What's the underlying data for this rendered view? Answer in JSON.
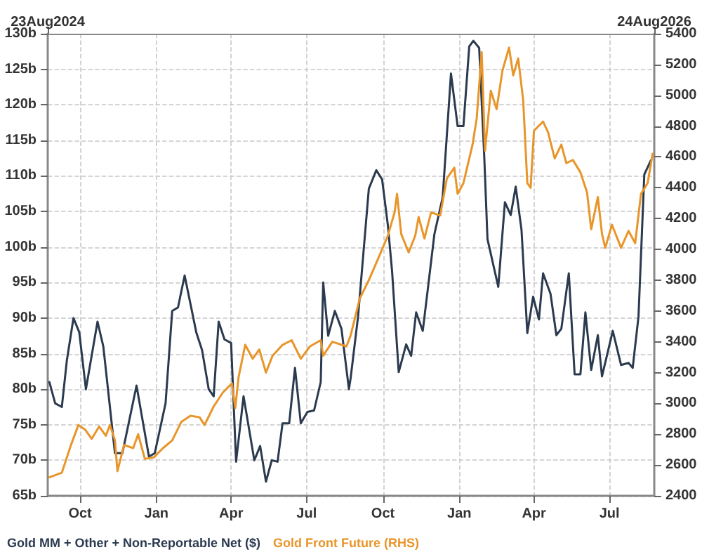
{
  "chart_data": {
    "type": "line",
    "xlim": [
      "2024-08-23",
      "2026-08-24"
    ],
    "xticks": [
      {
        "value": "2024-10-01",
        "label": "Oct"
      },
      {
        "value": "2025-01-01",
        "label": "Jan"
      },
      {
        "value": "2025-04-01",
        "label": "Apr"
      },
      {
        "value": "2025-07-01",
        "label": "Jul"
      },
      {
        "value": "2025-10-01",
        "label": "Oct"
      },
      {
        "value": "2026-01-01",
        "label": "Jan"
      },
      {
        "value": "2026-04-01",
        "label": "Apr"
      },
      {
        "value": "2026-07-01",
        "label": "Jul"
      }
    ],
    "x2lim": [
      "2024-08-23",
      "2026-08-24"
    ],
    "x2ticks": [
      {
        "value": "2024-08-23",
        "label": "23Aug2024"
      },
      {
        "value": "2026-08-24",
        "label": "24Aug2026"
      }
    ],
    "ylim": [
      65,
      130
    ],
    "yticks": [
      {
        "value": 65,
        "label": "65b"
      },
      {
        "value": 70,
        "label": "70b"
      },
      {
        "value": 75,
        "label": "75b"
      },
      {
        "value": 80,
        "label": "80b"
      },
      {
        "value": 85,
        "label": "85b"
      },
      {
        "value": 90,
        "label": "90b"
      },
      {
        "value": 95,
        "label": "95b"
      },
      {
        "value": 100,
        "label": "100b"
      },
      {
        "value": 105,
        "label": "105b"
      },
      {
        "value": 110,
        "label": "110b"
      },
      {
        "value": 115,
        "label": "115b"
      },
      {
        "value": 120,
        "label": "120b"
      },
      {
        "value": 125,
        "label": "125b"
      },
      {
        "value": 130,
        "label": "130b"
      }
    ],
    "y2lim": [
      2400,
      5400
    ],
    "y2ticks": [
      2400,
      2600,
      2800,
      3000,
      3200,
      3400,
      3600,
      3800,
      4000,
      4200,
      4400,
      4600,
      4800,
      5000,
      5200,
      5400
    ],
    "grid": true,
    "legend": "bottom left",
    "marker": "none",
    "line_style": "solid",
    "series": [
      {
        "name": "Gold MM + Other + Non-Reportable Net ($)",
        "color": "#2b3a4f",
        "x": [
          "2024-08-25",
          "2024-09-01",
          "2024-09-09",
          "2024-09-15",
          "2024-09-23",
          "2024-09-30",
          "2024-10-08",
          "2024-10-22",
          "2024-10-29",
          "2024-11-12",
          "2024-11-21",
          "2024-12-08",
          "2024-12-23",
          "2024-12-30",
          "2025-01-12",
          "2025-01-20",
          "2025-01-27",
          "2025-02-04",
          "2025-02-18",
          "2025-02-25",
          "2025-03-05",
          "2025-03-11",
          "2025-03-17",
          "2025-03-24",
          "2025-04-01",
          "2025-04-07",
          "2025-04-16",
          "2025-04-29",
          "2025-05-06",
          "2025-05-13",
          "2025-05-20",
          "2025-05-27",
          "2025-06-02",
          "2025-06-10",
          "2025-06-17",
          "2025-06-24",
          "2025-07-02",
          "2025-07-10",
          "2025-07-18",
          "2025-07-21",
          "2025-07-27",
          "2025-08-04",
          "2025-08-12",
          "2025-08-21",
          "2025-08-23",
          "2025-09-01",
          "2025-09-14",
          "2025-09-23",
          "2025-09-30",
          "2025-10-07",
          "2025-10-12",
          "2025-10-20",
          "2025-10-29",
          "2025-11-04",
          "2025-11-10",
          "2025-11-18",
          "2025-11-24",
          "2025-12-02",
          "2025-12-12",
          "2025-12-22",
          "2025-12-30",
          "2026-01-06",
          "2026-01-13",
          "2026-01-18",
          "2026-01-25",
          "2026-01-31",
          "2026-02-04",
          "2026-02-17",
          "2026-02-25",
          "2026-03-04",
          "2026-03-10",
          "2026-03-17",
          "2026-03-24",
          "2026-03-31",
          "2026-04-07",
          "2026-04-12",
          "2026-04-21",
          "2026-04-28",
          "2026-05-04",
          "2026-05-13",
          "2026-05-20",
          "2026-05-27",
          "2026-06-02",
          "2026-06-09",
          "2026-06-17",
          "2026-06-22",
          "2026-07-05",
          "2026-07-15",
          "2026-07-24",
          "2026-07-29",
          "2026-08-05",
          "2026-08-12",
          "2026-08-20"
        ],
        "values": [
          81,
          78,
          77.5,
          84,
          90,
          88,
          80,
          89.5,
          86,
          71,
          71,
          80.5,
          70.5,
          71,
          78,
          91,
          91.5,
          96,
          88,
          85.5,
          80,
          79,
          89.5,
          87,
          86.5,
          69.8,
          79,
          70,
          72,
          67,
          70,
          69.8,
          75.2,
          75.2,
          83,
          75.2,
          76.8,
          77,
          81,
          95,
          87.5,
          91,
          88.5,
          80,
          81.5,
          90.2,
          108.2,
          110.8,
          109.5,
          103,
          96.6,
          82.4,
          86.3,
          84.7,
          90.8,
          88.2,
          94,
          101.8,
          107,
          124.4,
          117,
          117,
          128.2,
          129,
          128,
          113,
          101.1,
          94.4,
          106.3,
          104.5,
          108.5,
          102.4,
          87.9,
          93,
          89.8,
          96.3,
          93.4,
          87.6,
          88.5,
          96.3,
          82.1,
          82.1,
          90.8,
          82.7,
          87.6,
          81.8,
          88.2,
          83.4,
          83.7,
          83,
          90.2,
          110.2,
          112.2
        ]
      },
      {
        "name": "Gold Front Future (RHS)",
        "color": "#e8952a",
        "axis": "y2",
        "x": [
          "2024-08-25",
          "2024-09-09",
          "2024-09-20",
          "2024-09-29",
          "2024-10-07",
          "2024-10-15",
          "2024-10-24",
          "2024-11-01",
          "2024-11-06",
          "2024-11-12",
          "2024-11-15",
          "2024-11-23",
          "2024-12-04",
          "2024-12-10",
          "2024-12-18",
          "2024-12-29",
          "2025-01-09",
          "2025-01-20",
          "2025-01-31",
          "2025-02-11",
          "2025-02-22",
          "2025-02-28",
          "2025-03-11",
          "2025-03-22",
          "2025-04-02",
          "2025-04-06",
          "2025-04-10",
          "2025-04-18",
          "2025-04-27",
          "2025-05-05",
          "2025-05-13",
          "2025-05-21",
          "2025-06-02",
          "2025-06-13",
          "2025-06-24",
          "2025-07-05",
          "2025-07-18",
          "2025-07-21",
          "2025-08-01",
          "2025-08-18",
          "2025-08-23",
          "2025-09-03",
          "2025-09-14",
          "2025-09-26",
          "2025-10-07",
          "2025-10-15",
          "2025-10-18",
          "2025-10-23",
          "2025-11-01",
          "2025-11-09",
          "2025-11-13",
          "2025-11-20",
          "2025-11-28",
          "2025-12-09",
          "2025-12-17",
          "2025-12-26",
          "2025-12-30",
          "2026-01-06",
          "2026-01-17",
          "2026-01-22",
          "2026-01-28",
          "2026-02-01",
          "2026-02-08",
          "2026-02-15",
          "2026-02-22",
          "2026-03-02",
          "2026-03-07",
          "2026-03-13",
          "2026-03-19",
          "2026-03-24",
          "2026-03-28",
          "2026-04-01",
          "2026-04-12",
          "2026-04-18",
          "2026-04-26",
          "2026-05-04",
          "2026-05-10",
          "2026-05-18",
          "2026-05-27",
          "2026-06-04",
          "2026-06-09",
          "2026-06-17",
          "2026-06-22",
          "2026-06-26",
          "2026-07-04",
          "2026-07-15",
          "2026-07-24",
          "2026-08-01",
          "2026-08-08",
          "2026-08-16",
          "2026-08-22"
        ],
        "values": [
          2520,
          2550,
          2730,
          2860,
          2830,
          2770,
          2850,
          2790,
          2860,
          2760,
          2560,
          2730,
          2710,
          2800,
          2640,
          2650,
          2710,
          2760,
          2880,
          2920,
          2910,
          2860,
          2980,
          3070,
          3130,
          2970,
          3170,
          3380,
          3290,
          3350,
          3200,
          3310,
          3380,
          3410,
          3290,
          3370,
          3410,
          3310,
          3400,
          3370,
          3440,
          3680,
          3800,
          3950,
          4090,
          4240,
          4360,
          4100,
          3980,
          4090,
          4210,
          4070,
          4240,
          4220,
          4460,
          4530,
          4360,
          4430,
          4680,
          4850,
          5280,
          4640,
          5030,
          4910,
          5160,
          5310,
          5130,
          5240,
          4970,
          4430,
          4400,
          4770,
          4830,
          4760,
          4590,
          4680,
          4560,
          4580,
          4500,
          4370,
          4130,
          4340,
          4100,
          4010,
          4160,
          4010,
          4120,
          4040,
          4360,
          4430,
          4620
        ]
      }
    ]
  }
}
